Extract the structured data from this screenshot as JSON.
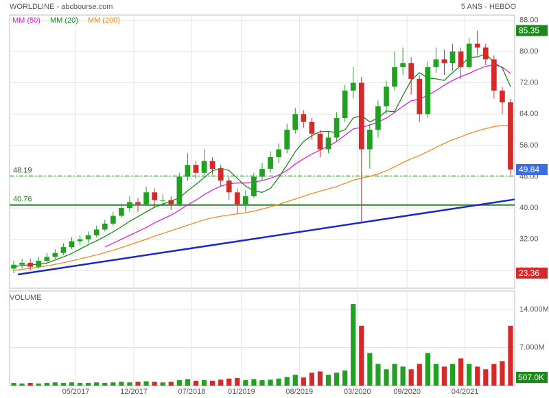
{
  "chart_data": {
    "type": "candlestick",
    "title": "WORLDLINE - abcbourse.com",
    "subtitle": "5 ANS - HEBDO",
    "up_color": "#22a022",
    "down_color": "#d42a2a",
    "x": [
      "2016-09",
      "2016-10",
      "2016-11",
      "2016-12",
      "2017-01",
      "2017-02",
      "2017-03",
      "2017-04",
      "2017-05",
      "2017-06",
      "2017-07",
      "2017-08",
      "2017-09",
      "2017-10",
      "2017-11",
      "2017-12",
      "2018-01",
      "2018-02",
      "2018-03",
      "2018-04",
      "2018-05",
      "2018-06",
      "2018-07",
      "2018-08",
      "2018-09",
      "2018-10",
      "2018-11",
      "2018-12",
      "2019-01",
      "2019-02",
      "2019-03",
      "2019-04",
      "2019-05",
      "2019-06",
      "2019-07",
      "2019-08",
      "2019-09",
      "2019-10",
      "2019-11",
      "2019-12",
      "2020-01",
      "2020-02",
      "2020-03",
      "2020-04",
      "2020-05",
      "2020-06",
      "2020-07",
      "2020-08",
      "2020-09",
      "2020-10",
      "2020-11",
      "2020-12",
      "2021-01",
      "2021-02",
      "2021-03",
      "2021-04",
      "2021-05",
      "2021-06",
      "2021-07",
      "2021-08",
      "2021-09"
    ],
    "open": [
      24.5,
      25.5,
      26,
      25,
      26.5,
      27.5,
      28.5,
      30,
      31.5,
      32,
      33,
      34.5,
      36,
      38,
      40,
      41.5,
      41,
      44,
      42,
      42,
      41,
      48,
      51,
      49,
      52,
      50,
      47,
      44,
      41,
      43,
      48,
      50,
      53,
      55,
      60,
      64,
      62,
      59,
      55,
      58,
      63,
      70,
      72,
      55,
      60,
      66,
      71,
      76,
      77,
      73,
      64,
      76,
      78,
      77,
      80,
      76,
      82,
      81,
      78,
      70,
      67
    ],
    "high": [
      26.5,
      27,
      27,
      27.5,
      28.5,
      29.5,
      31,
      32.5,
      33,
      34,
      35.5,
      37,
      39,
      41,
      43,
      42.5,
      45.5,
      45,
      43.5,
      43,
      49,
      54,
      52,
      55,
      53,
      51,
      48,
      45,
      44.5,
      49,
      51.5,
      54.5,
      56.5,
      61.5,
      65.5,
      65,
      63,
      60,
      59.5,
      64.5,
      71.5,
      76,
      73.5,
      61.5,
      67.5,
      72.5,
      80,
      81,
      78.5,
      74,
      77.5,
      81,
      80.5,
      82,
      81,
      83.5,
      85.35,
      82,
      79,
      71,
      68
    ],
    "low": [
      23.36,
      24.5,
      24,
      24.5,
      26,
      27,
      28,
      29.5,
      30.5,
      31,
      32.5,
      34,
      35.5,
      37.5,
      39,
      39,
      40.5,
      40,
      40.5,
      39.5,
      40.5,
      47,
      47.5,
      48.5,
      48.5,
      45.5,
      42,
      38.5,
      39,
      42.5,
      47,
      49,
      51.5,
      54,
      59,
      60.5,
      57.5,
      53,
      54,
      57,
      62,
      68,
      36,
      50,
      58,
      64,
      70,
      74,
      69,
      62,
      63,
      74.5,
      74,
      75,
      73,
      75.5,
      79,
      76.5,
      68,
      64,
      48.5
    ],
    "close": [
      25.5,
      26,
      25,
      26.5,
      27.5,
      28.5,
      30,
      31.5,
      32,
      33,
      34.5,
      36,
      38,
      40,
      41.5,
      41,
      44,
      42,
      42,
      41,
      48,
      51,
      49,
      52,
      50,
      47,
      44,
      41,
      43,
      48,
      50,
      53,
      55,
      60,
      64,
      62,
      59,
      55,
      58,
      63,
      70,
      72,
      55,
      60,
      66,
      71,
      76,
      77,
      73,
      64,
      76,
      78,
      77,
      80,
      76,
      82,
      81,
      78,
      70,
      67,
      49.84
    ],
    "xlim": [
      "2016-09",
      "2021-10"
    ],
    "xticks": [
      {
        "value": "2017-05",
        "label": "05/2017"
      },
      {
        "value": "2017-12",
        "label": "12/2017"
      },
      {
        "value": "2018-07",
        "label": "07/2018"
      },
      {
        "value": "2019-01",
        "label": "01/2019"
      },
      {
        "value": "2019-08",
        "label": "08/2019"
      },
      {
        "value": "2020-03",
        "label": "03/2020"
      },
      {
        "value": "2020-09",
        "label": "09/2020"
      },
      {
        "value": "2021-04",
        "label": "04/2021"
      }
    ],
    "ylim": [
      19.5,
      89.3
    ],
    "yticks": [
      {
        "value": 24,
        "label": "24.00"
      },
      {
        "value": 32,
        "label": "32.00"
      },
      {
        "value": 40,
        "label": "40.00"
      },
      {
        "value": 48,
        "label": "48.00"
      },
      {
        "value": 56,
        "label": "56.00"
      },
      {
        "value": 64,
        "label": "64.00"
      },
      {
        "value": 72,
        "label": "72.00"
      },
      {
        "value": 80,
        "label": "80.00"
      },
      {
        "value": 88,
        "label": "88.00"
      }
    ],
    "grid": true,
    "series": [
      {
        "name": "MM (50)",
        "color": "#e020e0",
        "values": [
          null,
          null,
          null,
          null,
          null,
          null,
          null,
          null,
          null,
          null,
          null,
          30,
          31,
          32,
          33,
          34,
          35,
          36.2,
          37.2,
          38.2,
          39.4,
          40.8,
          42,
          43.4,
          44.6,
          45.6,
          46.2,
          46.4,
          46.4,
          46.6,
          47,
          47.6,
          48.4,
          49.6,
          51.2,
          52.6,
          53.8,
          54.8,
          55.8,
          57,
          58.6,
          60.2,
          60.6,
          61.2,
          62,
          63,
          64.4,
          66,
          67.4,
          67.8,
          68.8,
          70,
          71.4,
          72.6,
          73.6,
          74.4,
          75.4,
          76.2,
          76.6,
          76,
          74.4
        ]
      },
      {
        "name": "MM (20)",
        "color": "#1a8a1a",
        "values": [
          25,
          25.3,
          25.5,
          25.6,
          25.9,
          26.7,
          27.5,
          28.4,
          29.5,
          30.6,
          31.6,
          32.7,
          33.9,
          35.2,
          36.6,
          37.8,
          39,
          40.2,
          41,
          41.8,
          42.6,
          44.4,
          46,
          47.8,
          49.5,
          50.2,
          49.6,
          47.6,
          45.6,
          44.4,
          44,
          45,
          47.8,
          51,
          54.4,
          57,
          58.5,
          59.5,
          59.6,
          59.2,
          60,
          63,
          63.6,
          62,
          63,
          64.8,
          64.6,
          68.8,
          72.6,
          74.6,
          73.2,
          73,
          72.6,
          74.6,
          76.4,
          78.5,
          78.6,
          79.4,
          77.2,
          75.8,
          71
        ]
      },
      {
        "name": "MM (200)",
        "color": "#f08a20",
        "values": [
          24,
          24.3,
          24.6,
          24.9,
          25.2,
          25.6,
          26,
          26.5,
          27,
          27.5,
          28,
          28.6,
          29.2,
          29.9,
          30.6,
          31.3,
          32,
          32.8,
          33.5,
          34.2,
          34.9,
          35.6,
          36.3,
          37,
          37.5,
          37.9,
          38.2,
          38.5,
          38.8,
          39.2,
          39.7,
          40.3,
          40.9,
          41.6,
          42.3,
          43,
          43.7,
          44.3,
          44.9,
          45.5,
          46.3,
          47.1,
          47.6,
          48.1,
          48.7,
          49.5,
          50.5,
          51.6,
          52.6,
          53.4,
          54.4,
          55.5,
          56.5,
          57.4,
          58.2,
          59,
          59.7,
          60.3,
          60.8,
          61.1,
          61
        ]
      }
    ],
    "levels": [
      {
        "value": 48.19,
        "color": "#1a6a1a",
        "style": "dashdot"
      },
      {
        "value": 40.76,
        "color": "#1a8a1a",
        "style": "solid"
      }
    ],
    "trendline": {
      "x": [
        "2016-10",
        "2021-10"
      ],
      "values": [
        23,
        42.2
      ],
      "color": "#1a28c8"
    },
    "price_boxes": [
      {
        "value": 85.35,
        "color": "#1a8a1a"
      },
      {
        "value": 49.84,
        "color": "#3a6ee8"
      },
      {
        "value": 23.36,
        "color": "#d42a2a"
      }
    ],
    "volume": {
      "title": "VOLUME",
      "values": [
        0.5,
        0.4,
        0.5,
        0.4,
        0.5,
        0.6,
        0.5,
        0.6,
        0.5,
        0.5,
        0.6,
        0.5,
        0.6,
        0.7,
        0.6,
        0.7,
        0.8,
        0.7,
        0.6,
        0.7,
        1.0,
        1.2,
        0.9,
        1.0,
        0.9,
        1.1,
        1.3,
        1.4,
        1.0,
        1.2,
        1.0,
        1.1,
        1.3,
        1.6,
        2.0,
        1.5,
        2.4,
        2.6,
        2.0,
        2.4,
        2.8,
        15,
        11,
        6,
        4,
        3,
        4,
        3.5,
        3,
        4,
        6,
        4,
        3.5,
        4,
        5,
        4,
        3.5,
        3,
        4,
        4.5,
        11
      ],
      "ylim": [
        0,
        17.4
      ],
      "yticks": [
        {
          "value": 7,
          "label": "7.000M"
        },
        {
          "value": 14,
          "label": "14.000M"
        }
      ],
      "last": {
        "value": 0.507,
        "label": "507.0K"
      },
      "box_color": "#1a8a1a"
    }
  }
}
